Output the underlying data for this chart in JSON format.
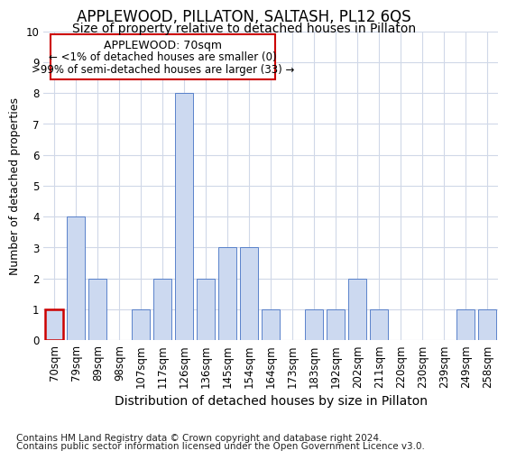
{
  "title": "APPLEWOOD, PILLATON, SALTASH, PL12 6QS",
  "subtitle": "Size of property relative to detached houses in Pillaton",
  "xlabel": "Distribution of detached houses by size in Pillaton",
  "ylabel": "Number of detached properties",
  "categories": [
    "70sqm",
    "79sqm",
    "89sqm",
    "98sqm",
    "107sqm",
    "117sqm",
    "126sqm",
    "136sqm",
    "145sqm",
    "154sqm",
    "164sqm",
    "173sqm",
    "183sqm",
    "192sqm",
    "202sqm",
    "211sqm",
    "220sqm",
    "230sqm",
    "239sqm",
    "249sqm",
    "258sqm"
  ],
  "values": [
    1,
    4,
    2,
    0,
    1,
    2,
    8,
    2,
    3,
    3,
    1,
    0,
    1,
    1,
    2,
    1,
    0,
    0,
    0,
    1,
    1
  ],
  "bar_color": "#ccd9f0",
  "bar_edge_color": "#4472c4",
  "highlight_index": 0,
  "highlight_bar_color": "#cc0000",
  "ylim": [
    0,
    10
  ],
  "yticks": [
    0,
    1,
    2,
    3,
    4,
    5,
    6,
    7,
    8,
    9,
    10
  ],
  "annotation_title": "APPLEWOOD: 70sqm",
  "annotation_line1": "← <1% of detached houses are smaller (0)",
  "annotation_line2": ">99% of semi-detached houses are larger (33) →",
  "annotation_box_color": "#ffffff",
  "annotation_box_edge": "#cc0000",
  "footer_line1": "Contains HM Land Registry data © Crown copyright and database right 2024.",
  "footer_line2": "Contains public sector information licensed under the Open Government Licence v3.0.",
  "bg_color": "#ffffff",
  "plot_bg_color": "#ffffff",
  "grid_color": "#d0d8e8",
  "title_fontsize": 12,
  "subtitle_fontsize": 10,
  "xlabel_fontsize": 10,
  "ylabel_fontsize": 9,
  "tick_fontsize": 8.5,
  "annotation_title_fontsize": 9,
  "annotation_text_fontsize": 8.5,
  "footer_fontsize": 7.5
}
